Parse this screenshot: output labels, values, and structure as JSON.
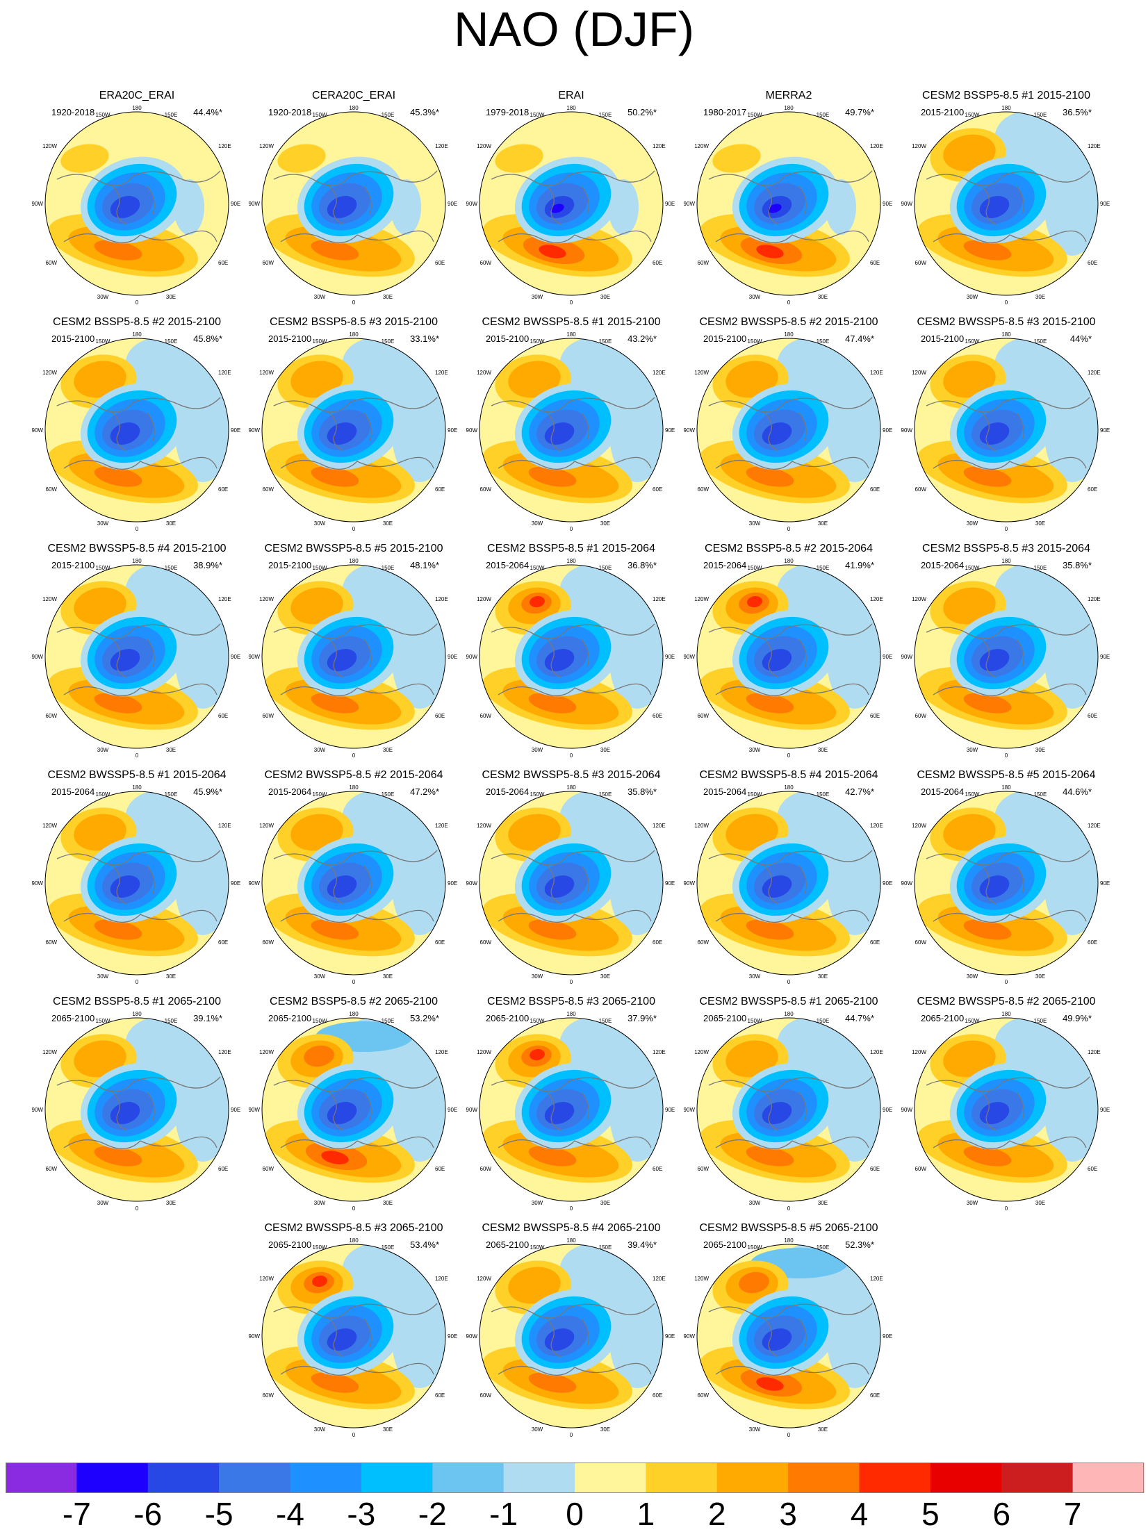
{
  "title": "NAO (DJF)",
  "lat_lon_labels": {
    "top": "180",
    "tl": "150W",
    "tr": "150E",
    "ul": "120W",
    "ur": "120E",
    "ml": "90W",
    "mr": "90E",
    "ll": "60W",
    "lr": "60E",
    "bl": "30W",
    "br": "30E",
    "bottom": "0"
  },
  "panels": [
    {
      "title": "ERA20C_ERAI",
      "period": "1920-2018",
      "pct": "44.4%*",
      "variant": 0
    },
    {
      "title": "CERA20C_ERAI",
      "period": "1920-2018",
      "pct": "45.3%*",
      "variant": 0
    },
    {
      "title": "ERAI",
      "period": "1979-2018",
      "pct": "50.2%*",
      "variant": 1
    },
    {
      "title": "MERRA2",
      "period": "1980-2017",
      "pct": "49.7%*",
      "variant": 1
    },
    {
      "title": "CESM2 BSSP5-8.5 #1 2015-2100",
      "period": "2015-2100",
      "pct": "36.5%*",
      "variant": 2
    },
    {
      "title": "CESM2 BSSP5-8.5 #2 2015-2100",
      "period": "2015-2100",
      "pct": "45.8%*",
      "variant": 2
    },
    {
      "title": "CESM2 BSSP5-8.5 #3 2015-2100",
      "period": "2015-2100",
      "pct": "33.1%*",
      "variant": 2
    },
    {
      "title": "CESM2 BWSSP5-8.5 #1 2015-2100",
      "period": "2015-2100",
      "pct": "43.2%*",
      "variant": 2
    },
    {
      "title": "CESM2 BWSSP5-8.5 #2 2015-2100",
      "period": "2015-2100",
      "pct": "47.4%*",
      "variant": 2
    },
    {
      "title": "CESM2 BWSSP5-8.5 #3 2015-2100",
      "period": "2015-2100",
      "pct": "44%*",
      "variant": 2
    },
    {
      "title": "CESM2 BWSSP5-8.5 #4 2015-2100",
      "period": "2015-2100",
      "pct": "38.9%*",
      "variant": 2
    },
    {
      "title": "CESM2 BWSSP5-8.5 #5 2015-2100",
      "period": "2015-2100",
      "pct": "48.1%*",
      "variant": 2
    },
    {
      "title": "CESM2 BSSP5-8.5 #1 2015-2064",
      "period": "2015-2064",
      "pct": "36.8%*",
      "variant": 3
    },
    {
      "title": "CESM2 BSSP5-8.5 #2 2015-2064",
      "period": "2015-2064",
      "pct": "41.9%*",
      "variant": 3
    },
    {
      "title": "CESM2 BSSP5-8.5 #3 2015-2064",
      "period": "2015-2064",
      "pct": "35.8%*",
      "variant": 2
    },
    {
      "title": "CESM2 BWSSP5-8.5 #1 2015-2064",
      "period": "2015-2064",
      "pct": "45.9%*",
      "variant": 2
    },
    {
      "title": "CESM2 BWSSP5-8.5 #2 2015-2064",
      "period": "2015-2064",
      "pct": "47.2%*",
      "variant": 2
    },
    {
      "title": "CESM2 BWSSP5-8.5 #3 2015-2064",
      "period": "2015-2064",
      "pct": "35.8%*",
      "variant": 2
    },
    {
      "title": "CESM2 BWSSP5-8.5 #4 2015-2064",
      "period": "2015-2064",
      "pct": "42.7%*",
      "variant": 2
    },
    {
      "title": "CESM2 BWSSP5-8.5 #5 2015-2064",
      "period": "2015-2064",
      "pct": "44.6%*",
      "variant": 2
    },
    {
      "title": "CESM2 BSSP5-8.5 #1 2065-2100",
      "period": "2065-2100",
      "pct": "39.1%*",
      "variant": 2
    },
    {
      "title": "CESM2 BSSP5-8.5 #2 2065-2100",
      "period": "2065-2100",
      "pct": "53.2%*",
      "variant": 4
    },
    {
      "title": "CESM2 BSSP5-8.5 #3 2065-2100",
      "period": "2065-2100",
      "pct": "37.9%*",
      "variant": 3
    },
    {
      "title": "CESM2 BWSSP5-8.5 #1 2065-2100",
      "period": "2065-2100",
      "pct": "44.7%*",
      "variant": 2
    },
    {
      "title": "CESM2 BWSSP5-8.5 #2 2065-2100",
      "period": "2065-2100",
      "pct": "49.9%*",
      "variant": 2
    },
    {
      "title": "CESM2 BWSSP5-8.5 #3 2065-2100",
      "period": "2065-2100",
      "pct": "53.4%*",
      "variant": 3
    },
    {
      "title": "CESM2 BWSSP5-8.5 #4 2065-2100",
      "period": "2065-2100",
      "pct": "39.4%*",
      "variant": 2
    },
    {
      "title": "CESM2 BWSSP5-8.5 #5 2065-2100",
      "period": "2065-2100",
      "pct": "52.3%*",
      "variant": 4
    }
  ],
  "colorbar": {
    "colors": [
      "#8a2be2",
      "#1e00ff",
      "#2848e6",
      "#3a78e8",
      "#1e90ff",
      "#00bfff",
      "#6cc4f0",
      "#b0dcf2",
      "#fff59a",
      "#ffd028",
      "#ffaa00",
      "#ff7a00",
      "#ff2a00",
      "#e80000",
      "#cc1e1e",
      "#ffb6b6"
    ],
    "labels": [
      "-7",
      "-6",
      "-5",
      "-4",
      "-3",
      "-2",
      "-1",
      "0",
      "1",
      "2",
      "3",
      "4",
      "5",
      "6",
      "7"
    ]
  }
}
